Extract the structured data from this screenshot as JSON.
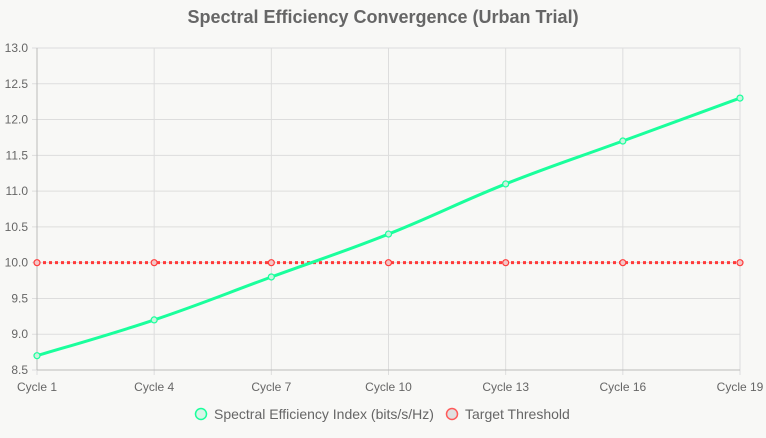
{
  "chart_data": {
    "type": "line",
    "title": "Spectral Efficiency Convergence (Urban Trial)",
    "categories": [
      "Cycle 1",
      "Cycle 4",
      "Cycle 7",
      "Cycle 10",
      "Cycle 13",
      "Cycle 16",
      "Cycle 19"
    ],
    "ylim": [
      8.5,
      13.0
    ],
    "yticks": [
      "8.5",
      "9.0",
      "9.5",
      "10.0",
      "10.5",
      "11.0",
      "11.5",
      "12.0",
      "12.5",
      "13.0"
    ],
    "grid": true,
    "legend_position": "bottom",
    "series": [
      {
        "name": "Spectral Efficiency Index (bits/s/Hz)",
        "values": [
          8.7,
          9.2,
          9.8,
          10.4,
          11.1,
          11.7,
          12.3
        ],
        "color": "#1aff9c",
        "style": "solid-smooth"
      },
      {
        "name": "Target Threshold",
        "values": [
          10.0,
          10.0,
          10.0,
          10.0,
          10.0,
          10.0,
          10.0
        ],
        "color": "#ff3b3b",
        "style": "dotted"
      }
    ]
  }
}
